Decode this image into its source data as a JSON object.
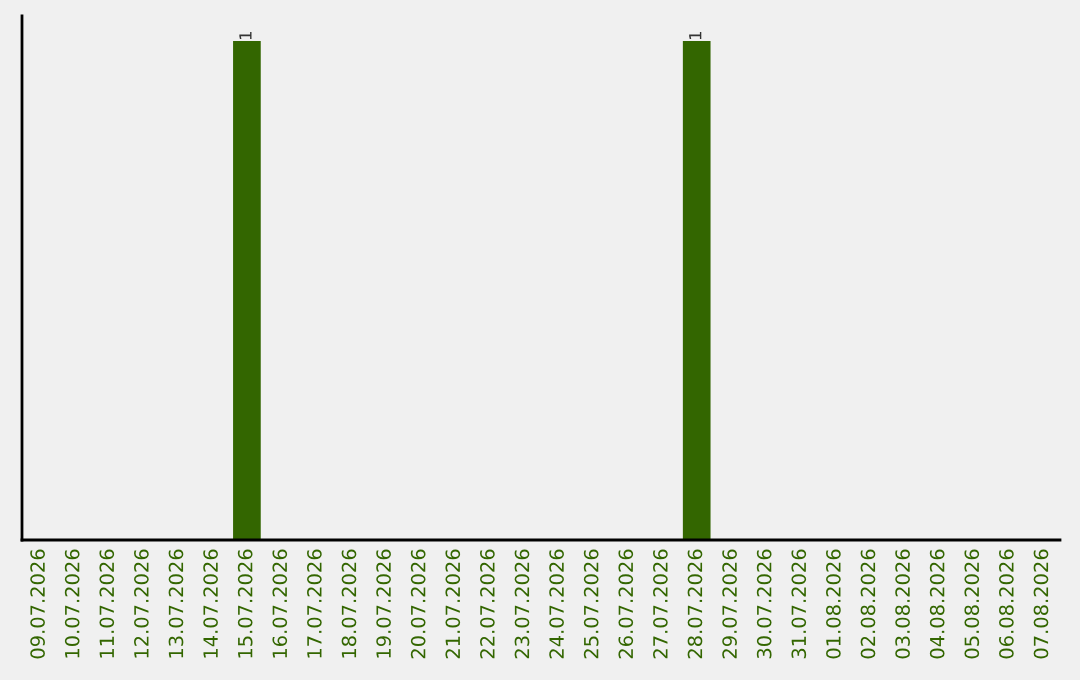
{
  "chart_data": {
    "type": "bar",
    "categories": [
      "09.07.2026",
      "10.07.2026",
      "11.07.2026",
      "12.07.2026",
      "13.07.2026",
      "14.07.2026",
      "15.07.2026",
      "16.07.2026",
      "17.07.2026",
      "18.07.2026",
      "19.07.2026",
      "20.07.2026",
      "21.07.2026",
      "22.07.2026",
      "23.07.2026",
      "24.07.2026",
      "25.07.2026",
      "26.07.2026",
      "27.07.2026",
      "28.07.2026",
      "29.07.2026",
      "30.07.2026",
      "31.07.2026",
      "01.08.2026",
      "02.08.2026",
      "03.08.2026",
      "04.08.2026",
      "05.08.2026",
      "06.08.2026",
      "07.08.2026"
    ],
    "values": [
      0,
      0,
      0,
      0,
      0,
      0,
      1,
      0,
      0,
      0,
      0,
      0,
      0,
      0,
      0,
      0,
      0,
      0,
      0,
      1,
      0,
      0,
      0,
      0,
      0,
      0,
      0,
      0,
      0,
      0
    ],
    "value_labels": [
      null,
      null,
      null,
      null,
      null,
      null,
      "1",
      null,
      null,
      null,
      null,
      null,
      null,
      null,
      null,
      null,
      null,
      null,
      null,
      "1",
      null,
      null,
      null,
      null,
      null,
      null,
      null,
      null,
      null,
      null
    ],
    "color": "#336600",
    "ylim": [
      0,
      1.05
    ],
    "tick_labels": "x",
    "grid": false,
    "legend": false
  }
}
